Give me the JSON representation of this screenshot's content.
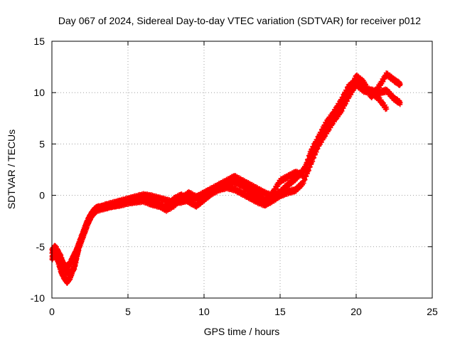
{
  "chart_data": {
    "type": "scatter",
    "title": "Day 067 of 2024, Sidereal Day-to-day VTEC variation (SDTVAR) for receiver p012",
    "xlabel": "GPS time / hours",
    "ylabel": "SDTVAR / TECUs",
    "xlim": [
      0,
      25
    ],
    "ylim": [
      -10,
      15
    ],
    "xticks": [
      "0",
      "5",
      "10",
      "15",
      "20",
      "25"
    ],
    "yticks": [
      "-10",
      "-5",
      "0",
      "5",
      "10",
      "15"
    ],
    "grid": true,
    "marker": "plus",
    "colors": {
      "series": "#ff0000",
      "grid": "#a0a0a0",
      "axis": "#000000"
    },
    "series": [
      {
        "name": "",
        "tracks": [
          [
            [
              0.0,
              -6.2
            ],
            [
              0.2,
              -5.6
            ],
            [
              0.4,
              -6.4
            ],
            [
              0.6,
              -7.4
            ],
            [
              0.8,
              -8.0
            ],
            [
              1.0,
              -8.4
            ],
            [
              1.2,
              -8.0
            ],
            [
              1.4,
              -7.2
            ],
            [
              1.6,
              -6.2
            ],
            [
              1.8,
              -5.0
            ],
            [
              2.0,
              -4.2
            ],
            [
              2.2,
              -3.4
            ],
            [
              2.4,
              -2.6
            ],
            [
              2.6,
              -2.0
            ],
            [
              2.8,
              -1.6
            ],
            [
              3.0,
              -1.3
            ],
            [
              3.5,
              -1.0
            ],
            [
              4.0,
              -0.8
            ],
            [
              4.5,
              -0.6
            ],
            [
              5.0,
              -0.4
            ],
            [
              5.5,
              -0.2
            ],
            [
              6.0,
              0.0
            ],
            [
              6.5,
              -0.1
            ],
            [
              7.0,
              -0.3
            ],
            [
              7.5,
              -0.5
            ],
            [
              8.0,
              -0.7
            ],
            [
              8.5,
              -0.6
            ],
            [
              9.0,
              -0.4
            ],
            [
              9.5,
              -0.2
            ],
            [
              10.0,
              0.2
            ],
            [
              10.5,
              0.6
            ],
            [
              11.0,
              1.0
            ],
            [
              11.5,
              1.4
            ],
            [
              12.0,
              1.8
            ],
            [
              12.5,
              1.4
            ],
            [
              13.0,
              1.0
            ],
            [
              13.5,
              0.6
            ],
            [
              14.0,
              0.2
            ],
            [
              14.5,
              -0.1
            ],
            [
              15.0,
              0.3
            ],
            [
              15.5,
              1.0
            ],
            [
              16.0,
              1.6
            ],
            [
              16.5,
              2.4
            ],
            [
              17.0,
              3.6
            ],
            [
              17.5,
              5.0
            ],
            [
              18.0,
              6.4
            ],
            [
              18.5,
              7.6
            ],
            [
              19.0,
              8.6
            ],
            [
              19.5,
              10.0
            ],
            [
              20.0,
              11.6
            ],
            [
              20.5,
              11.0
            ],
            [
              21.0,
              9.6
            ],
            [
              21.5,
              10.6
            ],
            [
              22.0,
              11.8
            ],
            [
              22.5,
              11.2
            ],
            [
              22.9,
              10.8
            ]
          ],
          [
            [
              0.0,
              -5.4
            ],
            [
              0.2,
              -5.0
            ],
            [
              0.4,
              -5.6
            ],
            [
              0.6,
              -6.2
            ],
            [
              0.8,
              -6.8
            ],
            [
              1.0,
              -7.0
            ],
            [
              1.2,
              -6.6
            ],
            [
              1.4,
              -6.0
            ],
            [
              1.6,
              -5.4
            ],
            [
              1.8,
              -4.6
            ],
            [
              2.0,
              -3.8
            ],
            [
              2.2,
              -3.0
            ],
            [
              2.4,
              -2.3
            ],
            [
              2.6,
              -1.8
            ],
            [
              2.8,
              -1.4
            ],
            [
              3.0,
              -1.2
            ],
            [
              3.5,
              -1.1
            ],
            [
              4.0,
              -1.0
            ],
            [
              4.5,
              -0.9
            ],
            [
              5.0,
              -0.7
            ],
            [
              5.5,
              -0.6
            ],
            [
              6.0,
              -0.5
            ],
            [
              6.5,
              -0.8
            ],
            [
              7.0,
              -1.0
            ],
            [
              7.5,
              -1.2
            ],
            [
              8.0,
              -0.4
            ],
            [
              8.5,
              0.0
            ],
            [
              9.0,
              -0.6
            ],
            [
              9.5,
              -1.0
            ],
            [
              10.0,
              -0.4
            ],
            [
              10.5,
              0.2
            ],
            [
              11.0,
              0.6
            ],
            [
              11.5,
              0.8
            ],
            [
              12.0,
              0.6
            ],
            [
              12.5,
              0.2
            ],
            [
              13.0,
              -0.2
            ],
            [
              13.5,
              -0.6
            ],
            [
              14.0,
              -0.9
            ],
            [
              14.5,
              -0.5
            ],
            [
              15.0,
              0.0
            ],
            [
              15.5,
              0.3
            ],
            [
              16.0,
              0.5
            ],
            [
              16.5,
              1.2
            ],
            [
              17.0,
              3.0
            ],
            [
              17.5,
              4.8
            ],
            [
              18.0,
              6.0
            ],
            [
              18.5,
              7.2
            ],
            [
              19.0,
              8.2
            ],
            [
              19.5,
              9.6
            ],
            [
              20.0,
              10.8
            ],
            [
              20.5,
              10.2
            ],
            [
              21.0,
              10.0
            ],
            [
              21.5,
              9.4
            ],
            [
              22.0,
              8.4
            ]
          ],
          [
            [
              0.0,
              -5.8
            ],
            [
              0.3,
              -5.2
            ],
            [
              0.6,
              -6.0
            ],
            [
              0.9,
              -7.4
            ],
            [
              1.2,
              -7.6
            ],
            [
              1.5,
              -7.0
            ],
            [
              1.8,
              -4.8
            ],
            [
              2.2,
              -3.2
            ],
            [
              2.6,
              -1.9
            ],
            [
              3.0,
              -1.4
            ],
            [
              3.5,
              -1.2
            ],
            [
              4.0,
              -1.0
            ],
            [
              4.5,
              -0.8
            ],
            [
              5.0,
              -0.5
            ],
            [
              5.5,
              -0.3
            ],
            [
              6.0,
              -0.2
            ],
            [
              6.5,
              -0.5
            ],
            [
              7.0,
              -0.9
            ],
            [
              7.5,
              -1.4
            ],
            [
              8.0,
              -1.0
            ],
            [
              8.5,
              -0.3
            ],
            [
              9.0,
              0.2
            ],
            [
              9.5,
              -0.2
            ],
            [
              10.0,
              0.0
            ],
            [
              10.5,
              0.4
            ],
            [
              11.0,
              0.8
            ],
            [
              11.5,
              1.1
            ],
            [
              12.0,
              1.3
            ],
            [
              12.5,
              1.0
            ],
            [
              13.0,
              0.4
            ],
            [
              13.5,
              0.0
            ],
            [
              14.0,
              -0.5
            ],
            [
              14.5,
              0.2
            ],
            [
              15.0,
              1.4
            ],
            [
              15.5,
              1.8
            ],
            [
              16.0,
              2.2
            ],
            [
              16.5,
              2.0
            ],
            [
              17.0,
              4.2
            ],
            [
              17.5,
              5.6
            ],
            [
              18.0,
              7.0
            ],
            [
              18.5,
              8.0
            ],
            [
              19.0,
              9.2
            ],
            [
              19.5,
              10.6
            ],
            [
              20.0,
              11.2
            ],
            [
              20.5,
              10.4
            ],
            [
              21.0,
              10.2
            ],
            [
              21.5,
              10.0
            ],
            [
              22.0,
              10.2
            ],
            [
              22.5,
              9.4
            ],
            [
              22.9,
              9.0
            ]
          ]
        ]
      }
    ]
  }
}
